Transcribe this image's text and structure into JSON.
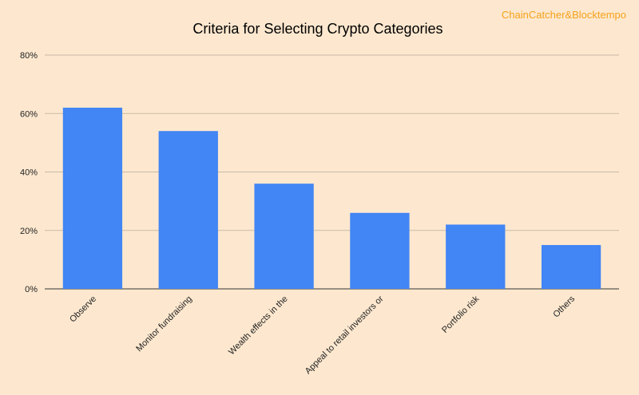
{
  "watermark": "ChainCatcher&Blocktempo",
  "colors": {
    "background": "#fde8cf",
    "bar": "#4285f4",
    "watermark": "#f5a11a"
  },
  "chart_data": {
    "type": "bar",
    "title": "Criteria for Selecting Crypto Categories",
    "xlabel": "",
    "ylabel": "",
    "categories": [
      "Observe",
      "Monitor fundraising",
      "Wealth effects in the",
      "Appeal to retail investors or",
      "Portfolio risk",
      "Others"
    ],
    "values": [
      62,
      54,
      36,
      26,
      22,
      15
    ],
    "ylim": [
      0,
      80
    ],
    "yticks": [
      0,
      20,
      40,
      60,
      80
    ],
    "ytick_labels": [
      "0%",
      "20%",
      "40%",
      "60%",
      "80%"
    ],
    "grid": true,
    "legend": "none"
  }
}
